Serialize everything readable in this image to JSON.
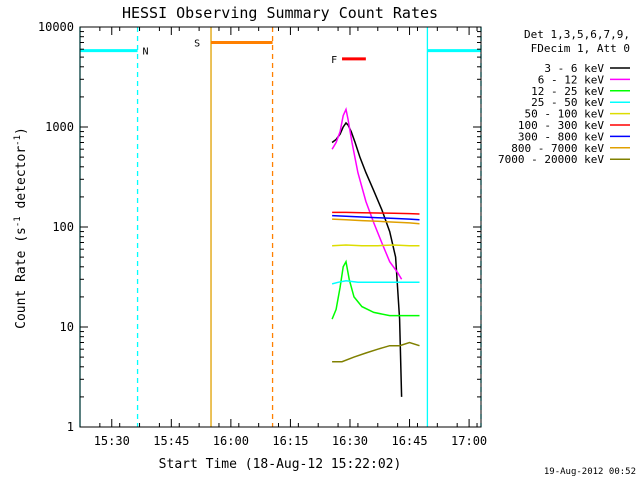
{
  "chart_data": {
    "type": "line",
    "title": "HESSI Observing Summary Count Rates",
    "xlabel": "Start Time (18-Aug-12 15:22:02)",
    "ylabel_prefix": "Count Rate (s",
    "ylabel_sup1": "-1",
    "ylabel_mid": " detector",
    "ylabel_sup2": "-1",
    "ylabel_suffix": ")",
    "x_unit": "minutes after 15:22:02",
    "xlim": [
      0,
      101
    ],
    "ylim": [
      1,
      10000
    ],
    "y_scale": "log",
    "x_ticks": [
      {
        "x": 8,
        "label": "15:30"
      },
      {
        "x": 23,
        "label": "15:45"
      },
      {
        "x": 38,
        "label": "16:00"
      },
      {
        "x": 53,
        "label": "16:15"
      },
      {
        "x": 68,
        "label": "16:30"
      },
      {
        "x": 83,
        "label": "16:45"
      },
      {
        "x": 98,
        "label": "17:00"
      }
    ],
    "y_ticks": [
      {
        "y": 1,
        "label": "1"
      },
      {
        "y": 10,
        "label": "10"
      },
      {
        "y": 100,
        "label": "100"
      },
      {
        "y": 1000,
        "label": "1000"
      },
      {
        "y": 10000,
        "label": "10000"
      }
    ],
    "legend_header": [
      "Det 1,3,5,6,7,9,",
      "FDecim 1, Att 0"
    ],
    "legend_position": "right",
    "series": [
      {
        "name": "3 - 6 keV",
        "color": "#000000",
        "x": [
          63.5,
          64.5,
          65.5,
          66.3,
          67,
          67.5,
          68.3,
          69.3,
          70.5,
          72,
          74,
          76,
          78,
          79.5,
          80.5,
          81
        ],
        "y": [
          700,
          750,
          850,
          1000,
          1100,
          1050,
          900,
          700,
          500,
          350,
          230,
          150,
          90,
          50,
          12,
          2
        ]
      },
      {
        "name": "6 - 12 keV",
        "color": "#ff00ff",
        "x": [
          63.5,
          64.5,
          65.5,
          66.3,
          67,
          67.5,
          68.5,
          70,
          72,
          74,
          76,
          78,
          80,
          81
        ],
        "y": [
          600,
          700,
          900,
          1300,
          1500,
          1200,
          700,
          350,
          180,
          110,
          70,
          45,
          35,
          30
        ]
      },
      {
        "name": "12 - 25 keV",
        "color": "#00ff00",
        "x": [
          63.5,
          64.5,
          65.5,
          66.3,
          67,
          67.8,
          69,
          71,
          74,
          78,
          81,
          83,
          85.5
        ],
        "y": [
          12,
          15,
          25,
          40,
          45,
          30,
          20,
          16,
          14,
          13,
          13,
          13,
          13
        ]
      },
      {
        "name": "25 - 50 keV",
        "color": "#00ffff",
        "x": [
          63.5,
          65,
          67,
          70,
          74,
          78,
          81,
          83,
          85.5
        ],
        "y": [
          27,
          28,
          29,
          28,
          28,
          28,
          28,
          28,
          28
        ]
      },
      {
        "name": "50 - 100 keV",
        "color": "#dddd00",
        "x": [
          63.5,
          67,
          71,
          75,
          79,
          83,
          85.5
        ],
        "y": [
          65,
          66,
          65,
          65,
          66,
          65,
          65
        ]
      },
      {
        "name": "100 - 300 keV",
        "color": "#ff0000",
        "x": [
          63.5,
          67,
          71,
          75,
          79,
          83,
          85.5
        ],
        "y": [
          140,
          140,
          139,
          138,
          137,
          136,
          135
        ]
      },
      {
        "name": "300 - 800 keV",
        "color": "#0000ff",
        "x": [
          63.5,
          67,
          71,
          75,
          79,
          83,
          85.5
        ],
        "y": [
          130,
          128,
          126,
          124,
          122,
          120,
          118
        ]
      },
      {
        "name": "800 - 7000 keV",
        "color": "#e0a000",
        "x": [
          63.5,
          67,
          71,
          75,
          79,
          83,
          85.5
        ],
        "y": [
          120,
          118,
          116,
          114,
          112,
          110,
          108
        ]
      },
      {
        "name": "7000 - 20000 keV",
        "color": "#808000",
        "x": [
          63.5,
          66,
          69,
          72,
          75,
          78,
          80.5,
          83,
          85.5
        ],
        "y": [
          4.5,
          4.5,
          5,
          5.5,
          6,
          6.5,
          6.5,
          7,
          6.5
        ]
      }
    ],
    "flag_bars": [
      {
        "label": "N",
        "color": "#00ffff",
        "segments": [
          [
            0,
            14.5
          ],
          [
            87.5,
            101
          ]
        ],
        "y": 5800
      },
      {
        "label": "S",
        "color": "#ff8000",
        "segments": [
          [
            33,
            48.5
          ]
        ],
        "y": 7000
      },
      {
        "label": "F",
        "color": "#ff0000",
        "segments": [
          [
            66,
            72
          ]
        ],
        "y": 4800
      }
    ],
    "flag_label_positions": {
      "N": 16.5,
      "S": 29.5,
      "F": 64
    },
    "vertical_markers": [
      {
        "x": 0,
        "color": "#00ffff",
        "style": "solid"
      },
      {
        "x": 14.5,
        "color": "#00ffff",
        "style": "dashed"
      },
      {
        "x": 33,
        "color": "#e0a000",
        "style": "solid"
      },
      {
        "x": 48.5,
        "color": "#ff8000",
        "style": "dashed"
      },
      {
        "x": 87.5,
        "color": "#00ffff",
        "style": "solid"
      },
      {
        "x": 101,
        "color": "#00ffff",
        "style": "dashed"
      }
    ]
  },
  "footer_timestamp": "19-Aug-2012 00:52"
}
